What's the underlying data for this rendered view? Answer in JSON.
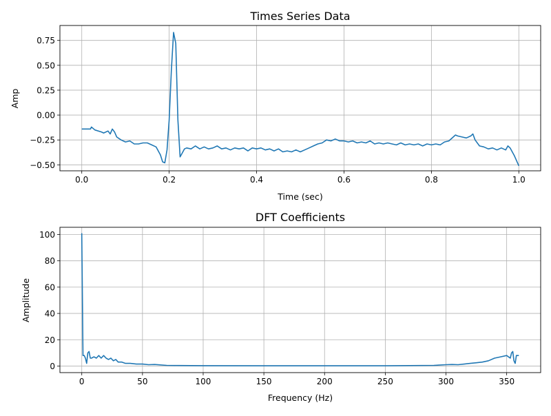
{
  "chart_data": [
    {
      "type": "line",
      "title": "Times Series Data",
      "xlabel": "Time (sec)",
      "ylabel": "Amp",
      "xlim": [
        -0.05,
        1.05
      ],
      "ylim": [
        -0.56,
        0.9
      ],
      "xticks": [
        0.0,
        0.2,
        0.4,
        0.6,
        0.8,
        1.0
      ],
      "xtick_labels": [
        "0.0",
        "0.2",
        "0.4",
        "0.6",
        "0.8",
        "1.0"
      ],
      "yticks": [
        -0.5,
        -0.25,
        0.0,
        0.25,
        0.5,
        0.75
      ],
      "ytick_labels": [
        "−0.50",
        "−0.25",
        "0.00",
        "0.25",
        "0.50",
        "0.75"
      ],
      "grid": true,
      "color": "#1f77b4",
      "series": [
        {
          "x": [
            0.0,
            0.02,
            0.022,
            0.03,
            0.045,
            0.05,
            0.06,
            0.065,
            0.07,
            0.075,
            0.08,
            0.09,
            0.1,
            0.11,
            0.12,
            0.13,
            0.14,
            0.15,
            0.16,
            0.17,
            0.18,
            0.185,
            0.19,
            0.195,
            0.2,
            0.205,
            0.21,
            0.215,
            0.22,
            0.225,
            0.23,
            0.235,
            0.24,
            0.25,
            0.26,
            0.27,
            0.28,
            0.29,
            0.3,
            0.31,
            0.32,
            0.33,
            0.34,
            0.35,
            0.36,
            0.37,
            0.38,
            0.39,
            0.4,
            0.41,
            0.42,
            0.43,
            0.44,
            0.45,
            0.46,
            0.47,
            0.48,
            0.49,
            0.5,
            0.51,
            0.52,
            0.53,
            0.54,
            0.55,
            0.56,
            0.57,
            0.58,
            0.59,
            0.6,
            0.61,
            0.62,
            0.63,
            0.64,
            0.65,
            0.66,
            0.67,
            0.68,
            0.69,
            0.7,
            0.71,
            0.72,
            0.73,
            0.74,
            0.75,
            0.76,
            0.77,
            0.78,
            0.79,
            0.8,
            0.81,
            0.82,
            0.83,
            0.84,
            0.85,
            0.855,
            0.86,
            0.87,
            0.88,
            0.89,
            0.895,
            0.9,
            0.91,
            0.92,
            0.93,
            0.94,
            0.95,
            0.96,
            0.97,
            0.975,
            0.98,
            0.99,
            1.0
          ],
          "values": [
            -0.14,
            -0.14,
            -0.12,
            -0.15,
            -0.17,
            -0.18,
            -0.16,
            -0.19,
            -0.14,
            -0.17,
            -0.22,
            -0.25,
            -0.27,
            -0.26,
            -0.29,
            -0.29,
            -0.28,
            -0.28,
            -0.3,
            -0.32,
            -0.4,
            -0.47,
            -0.48,
            -0.35,
            -0.05,
            0.45,
            0.83,
            0.72,
            -0.05,
            -0.42,
            -0.38,
            -0.34,
            -0.33,
            -0.34,
            -0.31,
            -0.34,
            -0.32,
            -0.34,
            -0.33,
            -0.31,
            -0.34,
            -0.33,
            -0.35,
            -0.33,
            -0.34,
            -0.33,
            -0.36,
            -0.33,
            -0.34,
            -0.33,
            -0.35,
            -0.34,
            -0.36,
            -0.34,
            -0.37,
            -0.36,
            -0.37,
            -0.35,
            -0.37,
            -0.35,
            -0.33,
            -0.31,
            -0.29,
            -0.28,
            -0.25,
            -0.26,
            -0.24,
            -0.26,
            -0.26,
            -0.27,
            -0.26,
            -0.28,
            -0.27,
            -0.28,
            -0.26,
            -0.29,
            -0.28,
            -0.29,
            -0.28,
            -0.29,
            -0.3,
            -0.28,
            -0.3,
            -0.29,
            -0.3,
            -0.29,
            -0.31,
            -0.29,
            -0.3,
            -0.29,
            -0.3,
            -0.27,
            -0.26,
            -0.22,
            -0.2,
            -0.21,
            -0.22,
            -0.23,
            -0.21,
            -0.19,
            -0.25,
            -0.31,
            -0.32,
            -0.34,
            -0.33,
            -0.35,
            -0.33,
            -0.35,
            -0.31,
            -0.33,
            -0.41,
            -0.51
          ]
        }
      ]
    },
    {
      "type": "line",
      "title": "DFT Coefficients",
      "xlabel": "Frequency (Hz)",
      "ylabel": "Amplitude",
      "xlim": [
        -18,
        378
      ],
      "ylim": [
        -5.0,
        105.5
      ],
      "xticks": [
        0,
        50,
        100,
        150,
        200,
        250,
        300,
        350
      ],
      "xtick_labels": [
        "0",
        "50",
        "100",
        "150",
        "200",
        "250",
        "300",
        "350"
      ],
      "yticks": [
        0,
        20,
        40,
        60,
        80,
        100
      ],
      "ytick_labels": [
        "0",
        "20",
        "40",
        "60",
        "80",
        "100"
      ],
      "grid": true,
      "color": "#1f77b4",
      "series": [
        {
          "x": [
            0,
            1,
            2,
            3,
            4,
            5,
            6,
            7,
            8,
            10,
            12,
            14,
            16,
            18,
            20,
            22,
            24,
            26,
            28,
            30,
            33,
            36,
            40,
            45,
            50,
            55,
            60,
            70,
            80,
            100,
            150,
            200,
            250,
            290,
            300,
            305,
            310,
            315,
            320,
            325,
            330,
            335,
            340,
            345,
            350,
            353,
            354,
            355,
            356,
            357,
            358,
            360
          ],
          "values": [
            101,
            8,
            8,
            6,
            2,
            10,
            11,
            6,
            6,
            7,
            6,
            8,
            6,
            8,
            6,
            5,
            6,
            4,
            5,
            3,
            3,
            2,
            2,
            1.5,
            1.5,
            1,
            1.2,
            0.5,
            0.4,
            0.3,
            0.2,
            0.2,
            0.2,
            0.5,
            1,
            1.2,
            1,
            1.5,
            2,
            2.5,
            3,
            4,
            6,
            7,
            8,
            6,
            10,
            11,
            4,
            2,
            8,
            8
          ]
        }
      ]
    }
  ]
}
